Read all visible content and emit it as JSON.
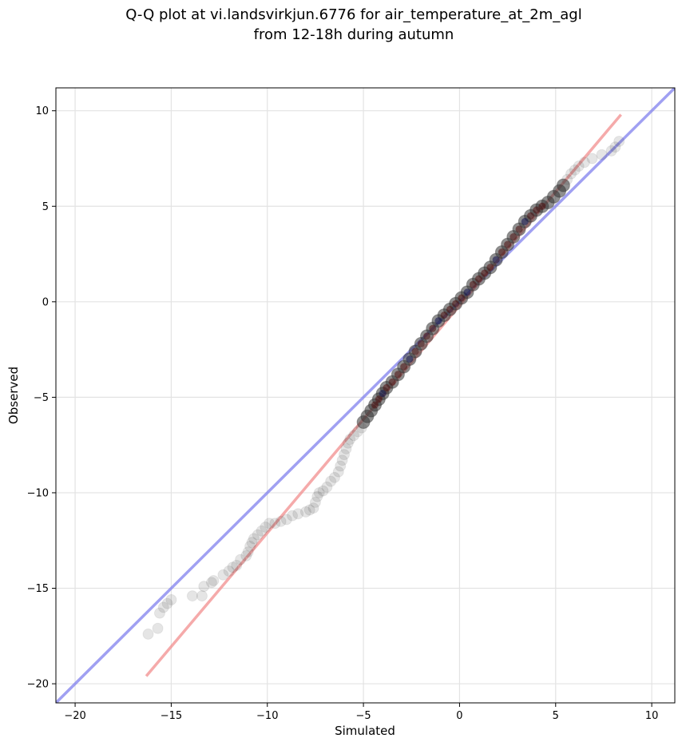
{
  "chart_data": {
    "type": "scatter",
    "title_lines": [
      "Q-Q plot at vi.landsvirkjun.6776 for air_temperature_at_2m_agl",
      "from 12-18h during autumn"
    ],
    "xlabel": "Simulated",
    "ylabel": "Observed",
    "xlim": [
      -21,
      11.2
    ],
    "ylim": [
      -21,
      11.2
    ],
    "x_ticks": [
      -20,
      -15,
      -10,
      -5,
      0,
      5,
      10
    ],
    "y_ticks": [
      -20,
      -15,
      -10,
      -5,
      0,
      5,
      10
    ],
    "x_tick_labels": [
      "−20",
      "−15",
      "−10",
      "−5",
      "0",
      "5",
      "10"
    ],
    "y_tick_labels": [
      "−20",
      "−15",
      "−10",
      "−5",
      "0",
      "5",
      "10"
    ],
    "grid": true,
    "identity_line_color": "#8080ee",
    "fit_line": {
      "x": [
        -16.3,
        8.4
      ],
      "y": [
        -19.6,
        9.8
      ],
      "color": "#f28e8e"
    },
    "points_color": "#333333",
    "dense_center_color": "#4a0f0f",
    "dense_mid_color": "#10104a",
    "quantile_points": [
      {
        "x": -16.2,
        "y": -17.4
      },
      {
        "x": -15.7,
        "y": -17.1
      },
      {
        "x": -15.6,
        "y": -16.3
      },
      {
        "x": -15.4,
        "y": -16.0
      },
      {
        "x": -15.2,
        "y": -15.8
      },
      {
        "x": -15.0,
        "y": -15.6
      },
      {
        "x": -13.9,
        "y": -15.4
      },
      {
        "x": -13.4,
        "y": -15.4
      },
      {
        "x": -13.3,
        "y": -14.9
      },
      {
        "x": -12.9,
        "y": -14.7
      },
      {
        "x": -12.8,
        "y": -14.6
      },
      {
        "x": -12.3,
        "y": -14.3
      },
      {
        "x": -12.0,
        "y": -14.1
      },
      {
        "x": -11.8,
        "y": -13.9
      },
      {
        "x": -11.6,
        "y": -13.8
      },
      {
        "x": -11.4,
        "y": -13.5
      },
      {
        "x": -11.1,
        "y": -13.3
      },
      {
        "x": -11.0,
        "y": -13.1
      },
      {
        "x": -10.9,
        "y": -12.8
      },
      {
        "x": -10.8,
        "y": -12.6
      },
      {
        "x": -10.7,
        "y": -12.4
      },
      {
        "x": -10.5,
        "y": -12.2
      },
      {
        "x": -10.3,
        "y": -12.0
      },
      {
        "x": -10.1,
        "y": -11.8
      },
      {
        "x": -9.9,
        "y": -11.6
      },
      {
        "x": -9.6,
        "y": -11.6
      },
      {
        "x": -9.3,
        "y": -11.5
      },
      {
        "x": -9.0,
        "y": -11.4
      },
      {
        "x": -8.7,
        "y": -11.2
      },
      {
        "x": -8.4,
        "y": -11.1
      },
      {
        "x": -8.0,
        "y": -11.0
      },
      {
        "x": -7.8,
        "y": -10.9
      },
      {
        "x": -7.6,
        "y": -10.8
      },
      {
        "x": -7.5,
        "y": -10.5
      },
      {
        "x": -7.4,
        "y": -10.2
      },
      {
        "x": -7.3,
        "y": -10.0
      },
      {
        "x": -7.1,
        "y": -9.9
      },
      {
        "x": -6.9,
        "y": -9.7
      },
      {
        "x": -6.7,
        "y": -9.4
      },
      {
        "x": -6.5,
        "y": -9.2
      },
      {
        "x": -6.3,
        "y": -8.9
      },
      {
        "x": -6.2,
        "y": -8.6
      },
      {
        "x": -6.1,
        "y": -8.3
      },
      {
        "x": -6.0,
        "y": -8.0
      },
      {
        "x": -5.9,
        "y": -7.7
      },
      {
        "x": -5.8,
        "y": -7.4
      },
      {
        "x": -5.7,
        "y": -7.2
      },
      {
        "x": -5.5,
        "y": -7.0
      },
      {
        "x": -5.3,
        "y": -6.8
      },
      {
        "x": -5.1,
        "y": -6.6
      },
      {
        "x": -5.0,
        "y": -6.3
      },
      {
        "x": -4.8,
        "y": -6.0
      },
      {
        "x": -4.6,
        "y": -5.7
      },
      {
        "x": -4.4,
        "y": -5.4
      },
      {
        "x": -4.2,
        "y": -5.1
      },
      {
        "x": -4.0,
        "y": -4.8
      },
      {
        "x": -3.8,
        "y": -4.5
      },
      {
        "x": -3.5,
        "y": -4.2
      },
      {
        "x": -3.2,
        "y": -3.8
      },
      {
        "x": -2.9,
        "y": -3.4
      },
      {
        "x": -2.6,
        "y": -3.0
      },
      {
        "x": -2.3,
        "y": -2.6
      },
      {
        "x": -2.0,
        "y": -2.2
      },
      {
        "x": -1.7,
        "y": -1.8
      },
      {
        "x": -1.4,
        "y": -1.4
      },
      {
        "x": -1.1,
        "y": -1.0
      },
      {
        "x": -0.8,
        "y": -0.7
      },
      {
        "x": -0.5,
        "y": -0.4
      },
      {
        "x": -0.2,
        "y": -0.1
      },
      {
        "x": 0.1,
        "y": 0.2
      },
      {
        "x": 0.4,
        "y": 0.5
      },
      {
        "x": 0.7,
        "y": 0.9
      },
      {
        "x": 1.0,
        "y": 1.2
      },
      {
        "x": 1.3,
        "y": 1.5
      },
      {
        "x": 1.6,
        "y": 1.8
      },
      {
        "x": 1.9,
        "y": 2.2
      },
      {
        "x": 2.2,
        "y": 2.6
      },
      {
        "x": 2.5,
        "y": 3.0
      },
      {
        "x": 2.8,
        "y": 3.4
      },
      {
        "x": 3.1,
        "y": 3.8
      },
      {
        "x": 3.4,
        "y": 4.2
      },
      {
        "x": 3.7,
        "y": 4.5
      },
      {
        "x": 4.0,
        "y": 4.8
      },
      {
        "x": 4.3,
        "y": 5.0
      },
      {
        "x": 4.6,
        "y": 5.2
      },
      {
        "x": 4.9,
        "y": 5.5
      },
      {
        "x": 5.2,
        "y": 5.8
      },
      {
        "x": 5.4,
        "y": 6.1
      },
      {
        "x": 5.6,
        "y": 6.4
      },
      {
        "x": 5.8,
        "y": 6.7
      },
      {
        "x": 6.0,
        "y": 6.9
      },
      {
        "x": 6.2,
        "y": 7.1
      },
      {
        "x": 6.5,
        "y": 7.3
      },
      {
        "x": 6.9,
        "y": 7.5
      },
      {
        "x": 7.4,
        "y": 7.7
      },
      {
        "x": 7.9,
        "y": 7.9
      },
      {
        "x": 8.1,
        "y": 8.1
      },
      {
        "x": 8.3,
        "y": 8.4
      }
    ]
  }
}
